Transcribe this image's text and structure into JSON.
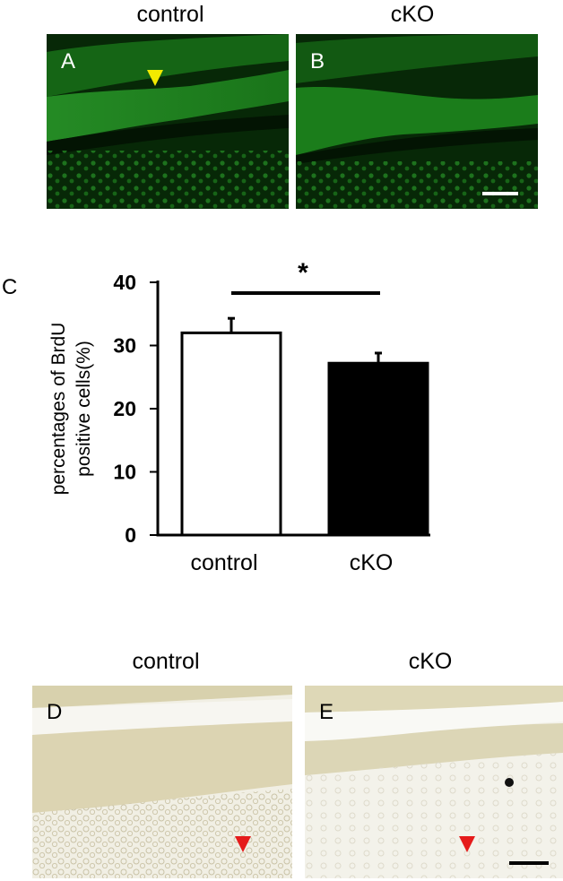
{
  "figure": {
    "top_panels": {
      "header_left": "control",
      "header_right": "cKO",
      "panel_a_label": "A",
      "panel_b_label": "B",
      "fluorescence_color": "#1f8f1f",
      "arrow_color": "#f2ea00",
      "scale_bar_color": "#ffffff"
    },
    "chart_panel_label": "C",
    "bottom_panels": {
      "header_left": "control",
      "header_right": "cKO",
      "panel_d_label": "D",
      "panel_e_label": "E",
      "background_color": "#f1efe4",
      "arrow_color": "#e51b1b",
      "scale_bar_color": "#000000"
    }
  },
  "chart_data": {
    "type": "bar",
    "categories": [
      "control",
      "cKO"
    ],
    "values": [
      32,
      27.2
    ],
    "errors": [
      2.3,
      1.6
    ],
    "bar_colors": [
      "#ffffff",
      "#000000"
    ],
    "ylabel_line1": "percentages of BrdU",
    "ylabel_line2": "positive cells(%)",
    "ylim": [
      0,
      40
    ],
    "yticks": [
      0,
      10,
      20,
      30,
      40
    ],
    "significance": "*",
    "grid": false
  }
}
